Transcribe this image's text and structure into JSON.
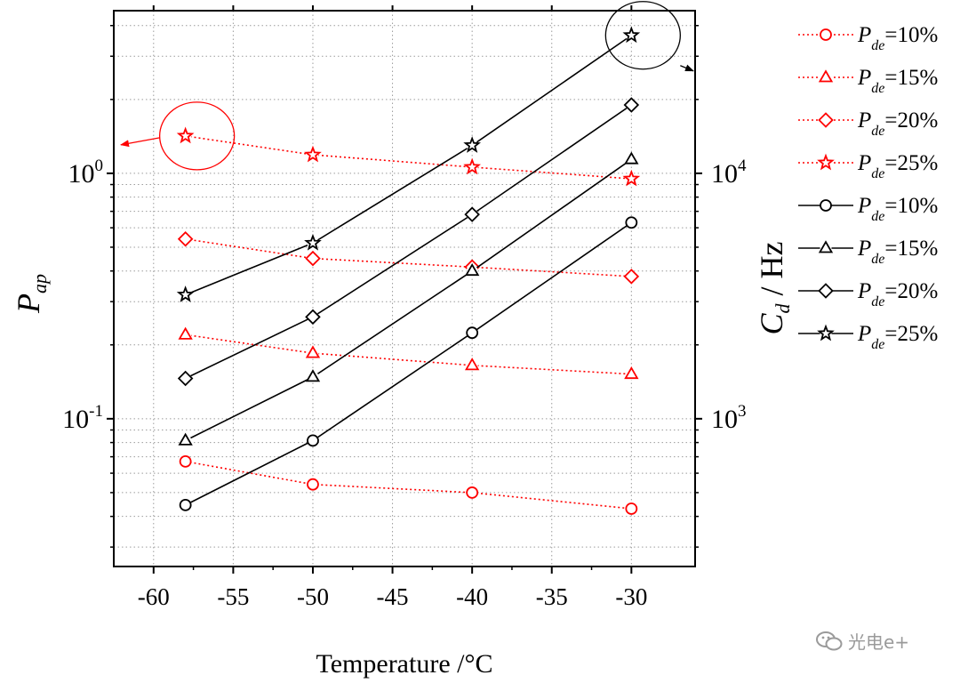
{
  "chart_data": {
    "type": "line",
    "title": "",
    "xlabel": "Temperature /°C",
    "ylabel_left": {
      "main": "P",
      "sub": "ap"
    },
    "ylabel_right": {
      "main": "C",
      "sub": "d",
      "rest": " / Hz"
    },
    "x_ticks": [
      -60,
      -55,
      -50,
      -45,
      -40,
      -35,
      -30
    ],
    "x_tick_labels": [
      "-60",
      "-55",
      "-50",
      "-45",
      "-40",
      "-35",
      "-30"
    ],
    "xlim": [
      -62.5,
      -26
    ],
    "y_left_scale": "log",
    "y_left_lim": [
      0.025,
      4.6
    ],
    "y_left_major_ticks": [
      {
        "value": 0.1,
        "base": "10",
        "exp": "-1"
      },
      {
        "value": 1.0,
        "base": "10",
        "exp": "0"
      }
    ],
    "y_right_scale": "log",
    "y_right_lim": [
      250,
      46000
    ],
    "y_right_major_ticks": [
      {
        "value": 1000,
        "base": "10",
        "exp": "3"
      },
      {
        "value": 10000,
        "base": "10",
        "exp": "4"
      }
    ],
    "grid": true,
    "legend_position": "right-outside",
    "colors": {
      "red": "#ff0000",
      "black": "#000000"
    },
    "series": [
      {
        "name": "Pde=10%",
        "legend_main": "P",
        "legend_sub": "de",
        "legend_rest": "=10%",
        "axis": "left",
        "color": "red",
        "line": "dotted",
        "marker": "circle",
        "x": [
          -58,
          -50,
          -40,
          -30
        ],
        "values": [
          0.067,
          0.054,
          0.05,
          0.043
        ]
      },
      {
        "name": "Pde=15%",
        "legend_main": "P",
        "legend_sub": "de",
        "legend_rest": "=15%",
        "axis": "left",
        "color": "red",
        "line": "dotted",
        "marker": "triangle",
        "x": [
          -58,
          -50,
          -40,
          -30
        ],
        "values": [
          0.22,
          0.185,
          0.165,
          0.152
        ]
      },
      {
        "name": "Pde=20%",
        "legend_main": "P",
        "legend_sub": "de",
        "legend_rest": "=20%",
        "axis": "left",
        "color": "red",
        "line": "dotted",
        "marker": "diamond",
        "x": [
          -58,
          -50,
          -40,
          -30
        ],
        "values": [
          0.54,
          0.45,
          0.415,
          0.38
        ]
      },
      {
        "name": "Pde=25%",
        "legend_main": "P",
        "legend_sub": "de",
        "legend_rest": "=25%",
        "axis": "left",
        "color": "red",
        "line": "dotted",
        "marker": "star",
        "x": [
          -58,
          -50,
          -40,
          -30
        ],
        "values": [
          1.42,
          1.19,
          1.06,
          0.95
        ]
      },
      {
        "name": "Pde=10%",
        "legend_main": "P",
        "legend_sub": "de",
        "legend_rest": "=10%",
        "axis": "right",
        "color": "black",
        "line": "solid",
        "marker": "circle",
        "x": [
          -58,
          -50,
          -40,
          -30
        ],
        "values": [
          445,
          815,
          2240,
          6300
        ]
      },
      {
        "name": "Pde=15%",
        "legend_main": "P",
        "legend_sub": "de",
        "legend_rest": "=15%",
        "axis": "right",
        "color": "black",
        "line": "solid",
        "marker": "triangle",
        "x": [
          -58,
          -50,
          -40,
          -30
        ],
        "values": [
          815,
          1480,
          4000,
          11400
        ]
      },
      {
        "name": "Pde=20%",
        "legend_main": "P",
        "legend_sub": "de",
        "legend_rest": "=20%",
        "axis": "right",
        "color": "black",
        "line": "solid",
        "marker": "diamond",
        "x": [
          -58,
          -50,
          -40,
          -30
        ],
        "values": [
          1460,
          2600,
          6800,
          19000
        ]
      },
      {
        "name": "Pde=25%",
        "legend_main": "P",
        "legend_sub": "de",
        "legend_rest": "=25%",
        "axis": "right",
        "color": "black",
        "line": "solid",
        "marker": "star",
        "x": [
          -58,
          -50,
          -40,
          -30
        ],
        "values": [
          3200,
          5200,
          13000,
          36500
        ]
      }
    ],
    "annotations": [
      {
        "kind": "ellipse-arrow",
        "color": "red",
        "encircles_series": 3,
        "at_x": -58,
        "points_to": "left axis"
      },
      {
        "kind": "ellipse-arrow",
        "color": "black",
        "encircles_series": 7,
        "at_x": -30,
        "points_to": "right axis"
      }
    ]
  },
  "watermark": {
    "text": "光电e+",
    "icon": "wechat-icon"
  }
}
